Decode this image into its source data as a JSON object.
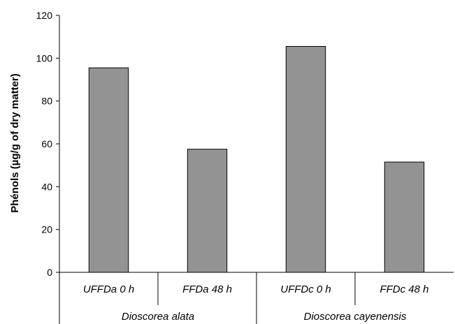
{
  "chart_data": {
    "type": "bar",
    "ylabel": "Phénols (µg/g of  dry matter)",
    "ylim": [
      0,
      120
    ],
    "yticks": [
      0,
      20,
      40,
      60,
      80,
      100,
      120
    ],
    "grid": false,
    "categories": [
      "UFFDa 0 h",
      "FFDa 48 h",
      "UFFDc 0 h",
      "FFDc 48 h"
    ],
    "values": [
      95.5,
      57.5,
      105.5,
      51.5
    ],
    "groups": [
      {
        "label": "Dioscorea alata",
        "categories": [
          "UFFDa 0 h",
          "FFDa 48 h"
        ]
      },
      {
        "label": "Dioscorea cayenensis",
        "categories": [
          "UFFDc 0 h",
          "FFDc 48 h"
        ]
      }
    ],
    "bar_color": "#939393",
    "bar_edge_color": "#000000"
  }
}
